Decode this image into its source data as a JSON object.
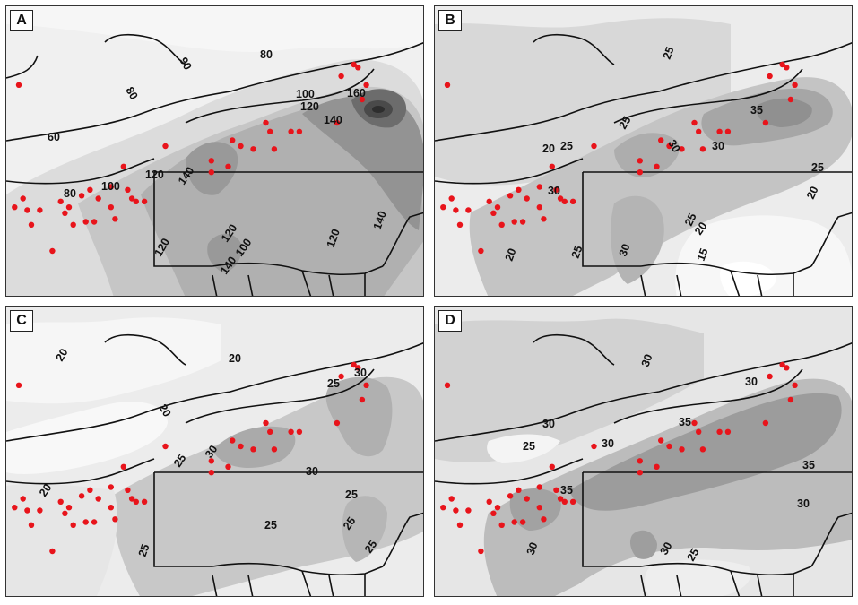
{
  "colors": {
    "background": "#f0f0f0",
    "shade_levels": [
      "#f4f4f4",
      "#dcdcdc",
      "#c6c6c6",
      "#b0b0b0",
      "#999999",
      "#828282",
      "#6c6c6c",
      "#565656"
    ],
    "station_marker": "#e8141b",
    "boundary": "#111111"
  },
  "stations": [
    [
      0.03,
      0.27
    ],
    [
      0.04,
      0.66
    ],
    [
      0.08,
      0.7
    ],
    [
      0.11,
      0.84
    ],
    [
      0.13,
      0.67
    ],
    [
      0.15,
      0.69
    ],
    [
      0.14,
      0.71
    ],
    [
      0.18,
      0.65
    ],
    [
      0.2,
      0.63
    ],
    [
      0.22,
      0.66
    ],
    [
      0.25,
      0.62
    ],
    [
      0.28,
      0.55
    ],
    [
      0.25,
      0.69
    ],
    [
      0.29,
      0.63
    ],
    [
      0.3,
      0.66
    ],
    [
      0.31,
      0.67
    ],
    [
      0.19,
      0.74
    ],
    [
      0.21,
      0.74
    ],
    [
      0.26,
      0.73
    ],
    [
      0.33,
      0.67
    ],
    [
      0.02,
      0.69
    ],
    [
      0.05,
      0.7
    ],
    [
      0.06,
      0.75
    ],
    [
      0.16,
      0.75
    ],
    [
      0.38,
      0.48
    ],
    [
      0.49,
      0.57
    ],
    [
      0.53,
      0.55
    ],
    [
      0.54,
      0.46
    ],
    [
      0.56,
      0.48
    ],
    [
      0.59,
      0.49
    ],
    [
      0.62,
      0.4
    ],
    [
      0.63,
      0.43
    ],
    [
      0.64,
      0.49
    ],
    [
      0.68,
      0.43
    ],
    [
      0.7,
      0.43
    ],
    [
      0.79,
      0.4
    ],
    [
      0.8,
      0.24
    ],
    [
      0.83,
      0.2
    ],
    [
      0.84,
      0.21
    ],
    [
      0.86,
      0.27
    ],
    [
      0.85,
      0.32
    ],
    [
      0.49,
      0.53
    ]
  ],
  "panels": [
    {
      "letter": "A",
      "levels": [
        1,
        2,
        3
      ],
      "contour_labels": [
        {
          "text": "80"
        },
        {
          "text": "90"
        },
        {
          "text": "80"
        },
        {
          "text": "60"
        },
        {
          "text": "100"
        },
        {
          "text": "120"
        },
        {
          "text": "140"
        },
        {
          "text": "160"
        },
        {
          "text": "120"
        },
        {
          "text": "140"
        },
        {
          "text": "80"
        },
        {
          "text": "100"
        },
        {
          "text": "140"
        },
        {
          "text": "120"
        },
        {
          "text": "100"
        },
        {
          "text": "120"
        },
        {
          "text": "120"
        },
        {
          "text": "140"
        }
      ]
    },
    {
      "letter": "B",
      "levels": [
        1,
        2,
        3
      ],
      "contour_labels": [
        {
          "text": "25"
        },
        {
          "text": "35"
        },
        {
          "text": "25"
        },
        {
          "text": "20"
        },
        {
          "text": "25"
        },
        {
          "text": "30"
        },
        {
          "text": "30"
        },
        {
          "text": "25"
        },
        {
          "text": "20"
        },
        {
          "text": "30"
        },
        {
          "text": "25"
        },
        {
          "text": "20"
        },
        {
          "text": "25"
        },
        {
          "text": "30"
        },
        {
          "text": "20"
        },
        {
          "text": "15"
        }
      ]
    },
    {
      "letter": "C",
      "levels": [
        1,
        2,
        3
      ],
      "contour_labels": [
        {
          "text": "20"
        },
        {
          "text": "20"
        },
        {
          "text": "20"
        },
        {
          "text": "30"
        },
        {
          "text": "25"
        },
        {
          "text": "25"
        },
        {
          "text": "30"
        },
        {
          "text": "30"
        },
        {
          "text": "20"
        },
        {
          "text": "25"
        },
        {
          "text": "25"
        },
        {
          "text": "25"
        },
        {
          "text": "25"
        },
        {
          "text": "25"
        }
      ]
    },
    {
      "letter": "D",
      "levels": [
        1,
        2,
        3
      ],
      "contour_labels": [
        {
          "text": "30"
        },
        {
          "text": "30"
        },
        {
          "text": "25"
        },
        {
          "text": "30"
        },
        {
          "text": "35"
        },
        {
          "text": "30"
        },
        {
          "text": "35"
        },
        {
          "text": "35"
        },
        {
          "text": "30"
        },
        {
          "text": "30"
        },
        {
          "text": "30"
        },
        {
          "text": "25"
        }
      ]
    }
  ]
}
